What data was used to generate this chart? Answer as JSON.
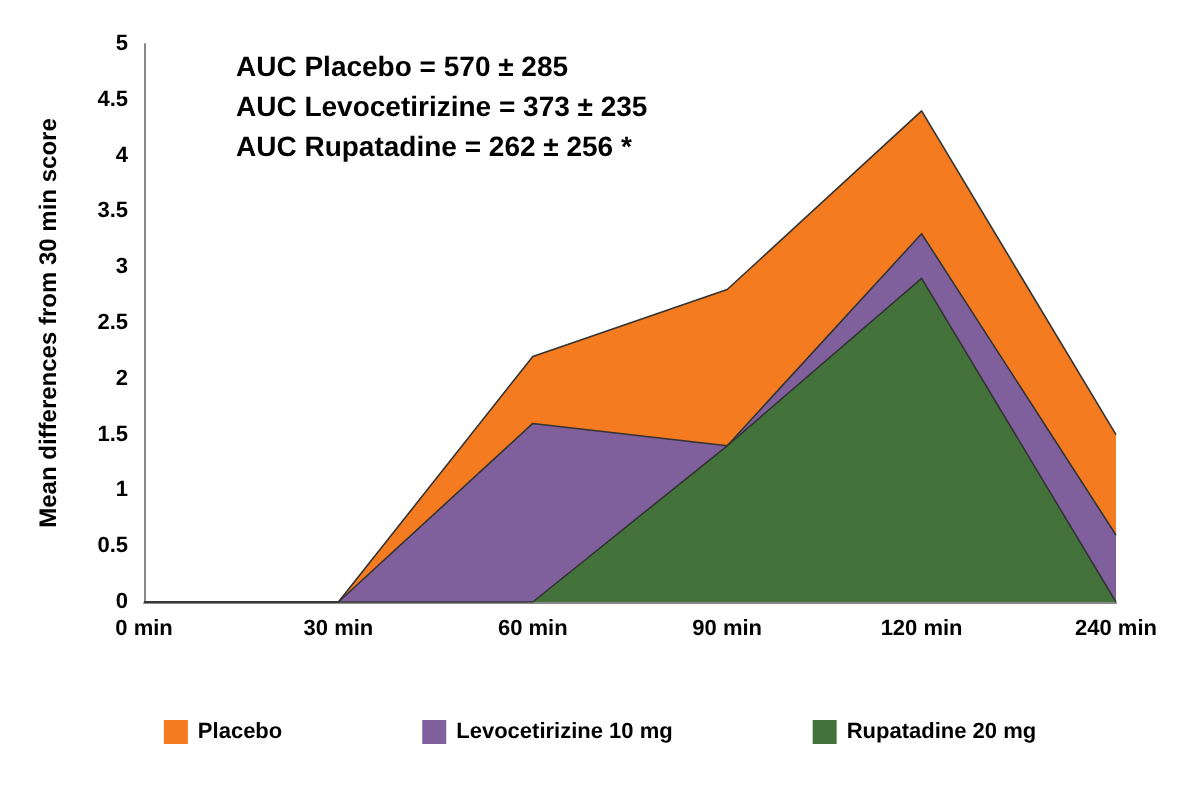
{
  "chart_data": {
    "type": "area",
    "ylabel": "Mean differences from 30 min score",
    "categories": [
      "0 min",
      "30 min",
      "60 min",
      "90 min",
      "120 min",
      "240 min"
    ],
    "series": [
      {
        "name": "Placebo",
        "color": "#f47b20",
        "values": [
          0,
          0,
          2.2,
          2.8,
          4.4,
          1.5
        ]
      },
      {
        "name": "Levocetirizine 10 mg",
        "color": "#7f5f9c",
        "values": [
          0,
          0,
          1.6,
          1.4,
          3.3,
          0.6
        ]
      },
      {
        "name": "Rupatadine 20 mg",
        "color": "#43733a",
        "values": [
          0,
          0,
          0,
          1.4,
          2.9,
          0
        ]
      }
    ],
    "ylim": [
      0,
      5
    ],
    "yticks": [
      0,
      0.5,
      1,
      1.5,
      2,
      2.5,
      3,
      3.5,
      4,
      4.5,
      5
    ],
    "grid": false,
    "legend": "bottom",
    "annotations": [
      "AUC Placebo = 570 ± 285",
      "AUC Levocetirizine = 373 ± 235",
      "AUC Rupatadine = 262 ± 256 *"
    ]
  }
}
